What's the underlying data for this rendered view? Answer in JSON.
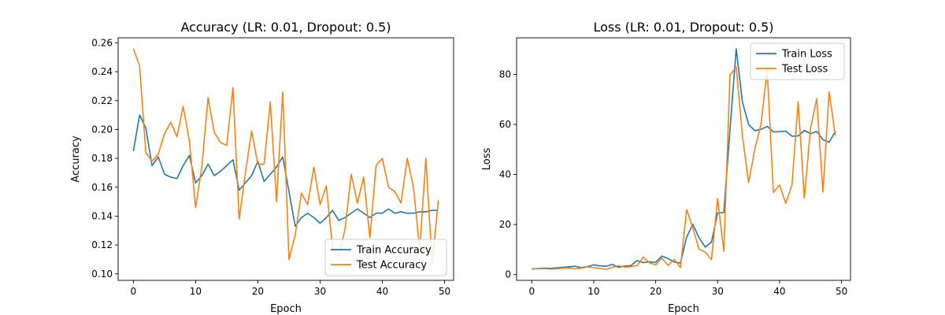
{
  "chart_data": [
    {
      "type": "line",
      "title": "Accuracy (LR: 0.01, Dropout: 0.5)",
      "xlabel": "Epoch",
      "ylabel": "Accuracy",
      "xlim": [
        -2.45,
        51.45
      ],
      "ylim": [
        0.0955,
        0.2635
      ],
      "xticks": [
        0,
        10,
        20,
        30,
        40,
        50
      ],
      "xtick_labels": [
        "0",
        "10",
        "20",
        "30",
        "40",
        "50"
      ],
      "yticks": [
        0.1,
        0.12,
        0.14,
        0.16,
        0.18,
        0.2,
        0.22,
        0.24,
        0.26
      ],
      "ytick_labels": [
        "0.10",
        "0.12",
        "0.14",
        "0.16",
        "0.18",
        "0.20",
        "0.22",
        "0.24",
        "0.26"
      ],
      "grid": false,
      "legend": "lower-right",
      "x": [
        0,
        1,
        2,
        3,
        4,
        5,
        6,
        7,
        8,
        9,
        10,
        11,
        12,
        13,
        14,
        15,
        16,
        17,
        18,
        19,
        20,
        21,
        22,
        23,
        24,
        25,
        26,
        27,
        28,
        29,
        30,
        31,
        32,
        33,
        34,
        35,
        36,
        37,
        38,
        39,
        40,
        41,
        42,
        43,
        44,
        45,
        46,
        47,
        48,
        49
      ],
      "series": [
        {
          "name": "Train Accuracy",
          "color": "#1f77b4",
          "values": [
            0.185,
            0.21,
            0.201,
            0.175,
            0.181,
            0.169,
            0.167,
            0.166,
            0.175,
            0.182,
            0.163,
            0.168,
            0.176,
            0.168,
            0.171,
            0.175,
            0.179,
            0.158,
            0.163,
            0.168,
            0.178,
            0.164,
            0.169,
            0.174,
            0.181,
            0.157,
            0.133,
            0.139,
            0.142,
            0.139,
            0.135,
            0.139,
            0.144,
            0.137,
            0.139,
            0.142,
            0.145,
            0.142,
            0.139,
            0.142,
            0.142,
            0.145,
            0.142,
            0.143,
            0.142,
            0.142,
            0.143,
            0.143,
            0.144,
            0.144
          ]
        },
        {
          "name": "Test Accuracy",
          "color": "#ff7f0e",
          "values": [
            0.256,
            0.244,
            0.184,
            0.178,
            0.183,
            0.197,
            0.205,
            0.195,
            0.216,
            0.192,
            0.146,
            0.174,
            0.222,
            0.198,
            0.191,
            0.189,
            0.229,
            0.138,
            0.17,
            0.199,
            0.176,
            0.176,
            0.219,
            0.15,
            0.226,
            0.11,
            0.127,
            0.156,
            0.148,
            0.174,
            0.148,
            0.161,
            0.118,
            0.112,
            0.131,
            0.169,
            0.149,
            0.167,
            0.125,
            0.175,
            0.18,
            0.16,
            0.157,
            0.149,
            0.18,
            0.16,
            0.117,
            0.18,
            0.107,
            0.151
          ]
        }
      ]
    },
    {
      "type": "line",
      "title": "Loss (LR: 0.01, Dropout: 0.5)",
      "xlabel": "Epoch",
      "ylabel": "Loss",
      "xlim": [
        -2.45,
        51.45
      ],
      "ylim": [
        -2.3,
        94.6
      ],
      "xticks": [
        0,
        10,
        20,
        30,
        40,
        50
      ],
      "xtick_labels": [
        "0",
        "10",
        "20",
        "30",
        "40",
        "50"
      ],
      "yticks": [
        0,
        20,
        40,
        60,
        80
      ],
      "ytick_labels": [
        "0",
        "20",
        "40",
        "60",
        "80"
      ],
      "grid": false,
      "legend": "upper-right",
      "x": [
        0,
        1,
        2,
        3,
        4,
        5,
        6,
        7,
        8,
        9,
        10,
        11,
        12,
        13,
        14,
        15,
        16,
        17,
        18,
        19,
        20,
        21,
        22,
        23,
        24,
        25,
        26,
        27,
        28,
        29,
        30,
        31,
        32,
        33,
        34,
        35,
        36,
        37,
        38,
        39,
        40,
        41,
        42,
        43,
        44,
        45,
        46,
        47,
        48,
        49
      ],
      "series": [
        {
          "name": "Train Loss",
          "color": "#1f77b4",
          "values": [
            2.3,
            2.4,
            2.6,
            2.5,
            2.7,
            2.9,
            3.1,
            3.3,
            2.8,
            3.2,
            3.9,
            3.5,
            3.3,
            4.1,
            2.9,
            3.4,
            3.6,
            5.6,
            4.8,
            5.1,
            4.9,
            7.4,
            6.4,
            5.0,
            4.6,
            15.0,
            20.1,
            14.7,
            11.0,
            13.0,
            24.6,
            24.8,
            58.0,
            90.2,
            69.0,
            60.0,
            57.5,
            58.0,
            59.2,
            57.0,
            57.1,
            57.3,
            55.3,
            55.4,
            57.6,
            56.3,
            57.2,
            53.9,
            52.9,
            57.2
          ]
        },
        {
          "name": "Test Loss",
          "color": "#ff7f0e",
          "values": [
            2.2,
            2.3,
            2.4,
            2.2,
            2.3,
            2.6,
            2.7,
            2.3,
            2.6,
            3.1,
            2.8,
            2.5,
            2.1,
            2.9,
            3.6,
            3.0,
            3.2,
            3.6,
            7.0,
            4.7,
            3.9,
            6.6,
            3.7,
            6.1,
            2.8,
            26.0,
            18.6,
            10.2,
            9.0,
            6.0,
            30.3,
            9.3,
            79.7,
            83.0,
            55.5,
            36.8,
            50.0,
            60.0,
            82.0,
            32.8,
            35.8,
            28.5,
            35.9,
            69.0,
            30.5,
            58.5,
            70.3,
            33.0,
            73.0,
            55.5
          ]
        }
      ]
    }
  ]
}
